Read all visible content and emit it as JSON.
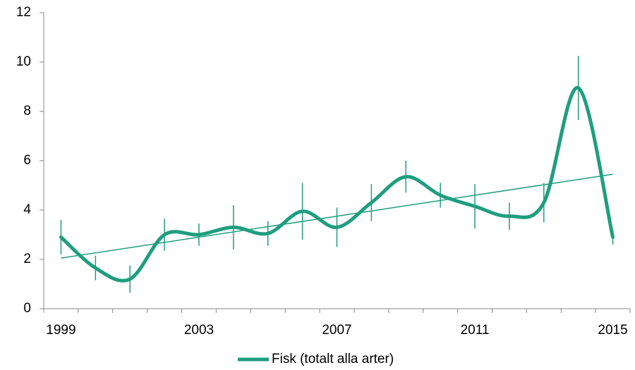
{
  "chart_data": {
    "type": "line",
    "categories": [
      "1999",
      null,
      null,
      null,
      "2003",
      null,
      null,
      null,
      "2007",
      null,
      null,
      null,
      "2011",
      null,
      null,
      null,
      "2015"
    ],
    "series": [
      {
        "name": "Fisk (totalt alla arter)",
        "color": "#1f9e7f",
        "values": [
          2.9,
          1.65,
          1.2,
          3.0,
          3.0,
          3.3,
          3.05,
          3.95,
          3.3,
          4.3,
          5.35,
          4.6,
          4.15,
          3.75,
          4.3,
          8.95,
          2.9
        ],
        "errors": [
          0.7,
          0.5,
          0.55,
          0.65,
          0.45,
          0.9,
          0.5,
          1.15,
          0.8,
          0.75,
          0.65,
          0.5,
          0.9,
          0.55,
          0.8,
          1.3,
          0.3
        ]
      }
    ],
    "trend": {
      "values": [
        2.05,
        5.45
      ],
      "color": "#1f9e7f"
    },
    "ylim": [
      0,
      12
    ],
    "yticks": [
      0,
      2,
      4,
      6,
      8,
      10,
      12
    ],
    "smooth": true,
    "legend": "bottom"
  }
}
